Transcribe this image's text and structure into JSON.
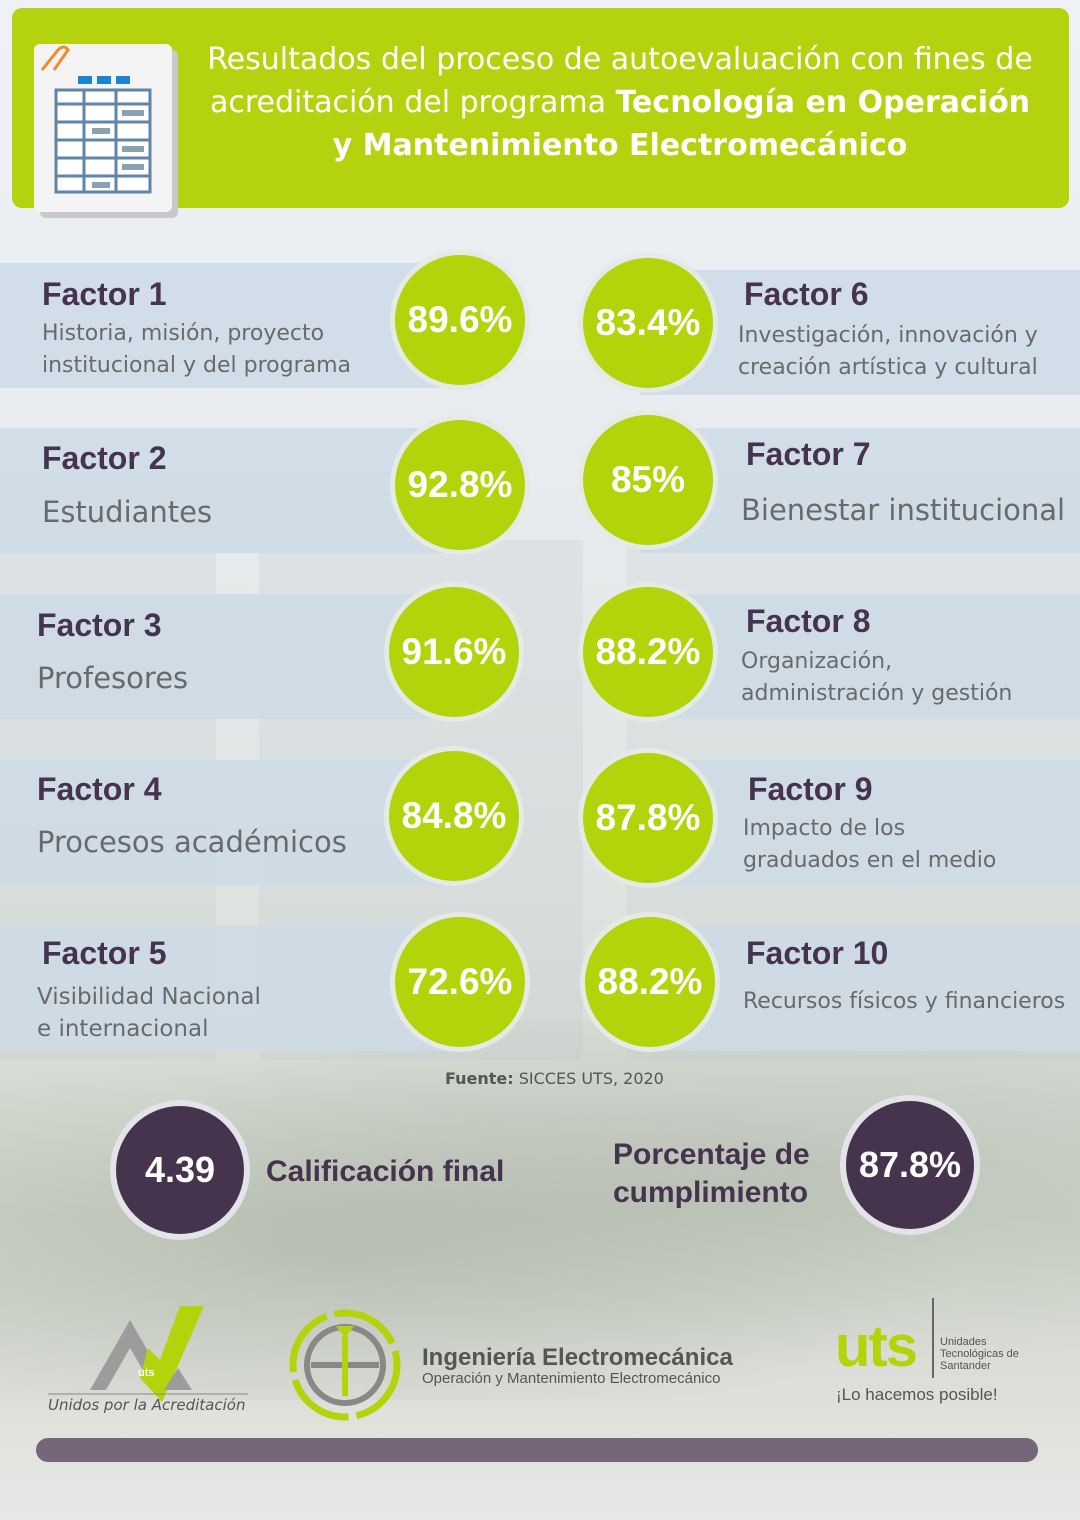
{
  "header": {
    "title_part1": "Resultados del proceso de autoevaluación con fines de acreditación del programa ",
    "title_bold": "Tecnología en Operación y Mantenimiento Electromecánico"
  },
  "factors": [
    {
      "title": "Factor 1",
      "desc": "Historia, misión, proyecto institucional y del programa",
      "value": "89.6%"
    },
    {
      "title": "Factor 2",
      "desc": "Estudiantes",
      "value": "92.8%"
    },
    {
      "title": "Factor 3",
      "desc": "Profesores",
      "value": "91.6%"
    },
    {
      "title": "Factor 4",
      "desc": "Procesos académicos",
      "value": "84.8%"
    },
    {
      "title": "Factor 5",
      "desc": "Visibilidad Nacional e internacional",
      "value": "72.6%"
    },
    {
      "title": "Factor 6",
      "desc": "Investigación, innovación y creación artística y cultural",
      "value": "83.4%"
    },
    {
      "title": "Factor 7",
      "desc": "Bienestar institucional",
      "value": "85%"
    },
    {
      "title": "Factor 8",
      "desc": "Organización, administración y gestión",
      "value": "88.2%"
    },
    {
      "title": "Factor 9",
      "desc": "Impacto de los graduados en el medio",
      "value": "87.8%"
    },
    {
      "title": "Factor 10",
      "desc": "Recursos físicos y financieros",
      "value": "88.2%"
    }
  ],
  "source": {
    "label": "Fuente:",
    "text": " SICCES UTS, 2020"
  },
  "summary": {
    "grade_value": "4.39",
    "grade_label": "Calificación final",
    "compliance_label": "Porcentaje de cumplimiento",
    "compliance_value": "87.8%"
  },
  "logos": {
    "acr_mark": "uts",
    "acr_text": "Unidos por la Acreditación",
    "ie_title": "Ingeniería Electromecánica",
    "ie_subtitle": "Operación y Mantenimiento Electromecánico",
    "uts_wordmark": "uts",
    "uts_name": "Unidades Tecnológicas de Santander",
    "uts_slogan": "¡Lo hacemos posible!"
  },
  "colors": {
    "accent_green": "#b3d30b",
    "purple": "#46344f",
    "footer_bar": "#776579"
  }
}
